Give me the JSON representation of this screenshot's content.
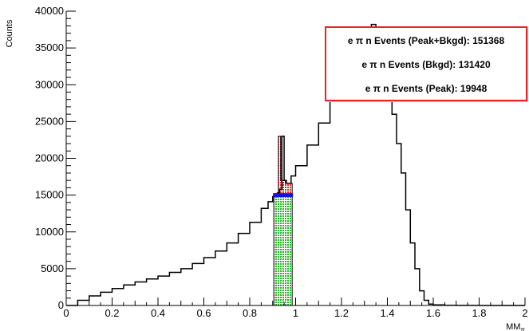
{
  "chart_data": {
    "type": "histogram",
    "ylabel": "Counts",
    "xlabel": "MM",
    "xlabel_subscript": "π",
    "xlim": [
      0,
      2
    ],
    "ylim": [
      0,
      40000
    ],
    "x_ticks": [
      "0",
      "0.2",
      "0.4",
      "0.6",
      "0.8",
      "1",
      "1.2",
      "1.4",
      "1.6",
      "1.8",
      "2"
    ],
    "y_ticks": [
      "0",
      "5000",
      "10000",
      "15000",
      "20000",
      "25000",
      "30000",
      "35000",
      "40000"
    ],
    "histogram": {
      "x": [
        0.0,
        0.05,
        0.1,
        0.15,
        0.2,
        0.25,
        0.3,
        0.35,
        0.4,
        0.45,
        0.5,
        0.55,
        0.6,
        0.65,
        0.7,
        0.75,
        0.8,
        0.85,
        0.88,
        0.9,
        0.92,
        0.93,
        0.94,
        0.95,
        0.96,
        0.98,
        1.0,
        1.05,
        1.1,
        1.15,
        1.2,
        1.25,
        1.3,
        1.33,
        1.35,
        1.38,
        1.4,
        1.42,
        1.44,
        1.46,
        1.48,
        1.5,
        1.52,
        1.54,
        1.56,
        1.58,
        1.6,
        1.65,
        1.7,
        1.8,
        1.9,
        2.0
      ],
      "y": [
        0,
        700,
        1300,
        1800,
        2300,
        2800,
        3200,
        3600,
        4000,
        4500,
        5000,
        5700,
        6500,
        7400,
        8500,
        9800,
        11300,
        13200,
        14100,
        14800,
        15300,
        15800,
        23000,
        17000,
        16600,
        17600,
        19000,
        21800,
        24800,
        28500,
        31500,
        35000,
        37500,
        38200,
        37800,
        34000,
        30000,
        26000,
        22000,
        18000,
        13000,
        8500,
        5000,
        2000,
        700,
        200,
        80,
        30,
        10,
        5,
        2,
        0
      ]
    },
    "bins": {
      "peak_min": 0.905,
      "peak_max": 0.985,
      "spike_x": 0.925,
      "spike_peak": 23000,
      "bkgd_level": 15000
    },
    "colors": {
      "peak": "#e8232a",
      "background": "#2ab52a",
      "bkgd_line": "#1010e0",
      "hist_line": "#000000",
      "legend_border": "#e8232a"
    }
  },
  "legend": {
    "entries": [
      "e π n Events (Peak+Bkgd): 151368",
      "e π n Events (Bkgd): 131420",
      "e π n Events (Peak): 19948"
    ]
  }
}
